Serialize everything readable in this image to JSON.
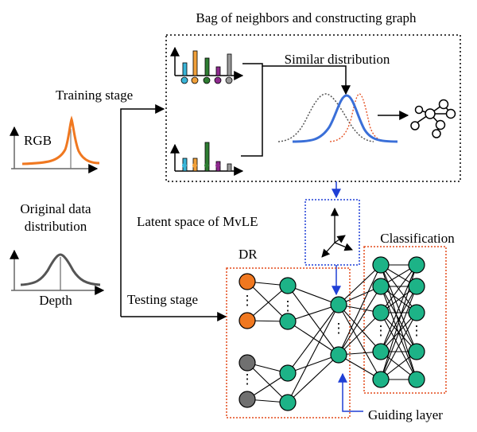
{
  "labels": {
    "bag_title": "Bag of neighbors and constructing graph",
    "similar_distribution": "Similar distribution",
    "training_stage": "Training stage",
    "rgb": "RGB",
    "original_data": "Original data",
    "distribution": "distribution",
    "latent_space": "Latent space of MvLE",
    "classification": "Classification",
    "dr": "DR",
    "depth": "Depth",
    "testing_stage": "Testing stage",
    "guiding_layer": "Guiding layer",
    "ellipsis": "⋮"
  },
  "colors": {
    "orange": "#f07820",
    "node_green": "#1db387",
    "node_gray": "#707070",
    "blue": "#1f3fd6",
    "red_dotted": "#e34a1a",
    "curve_blue": "#3a6fd8",
    "curve_gray": "#555555"
  }
}
